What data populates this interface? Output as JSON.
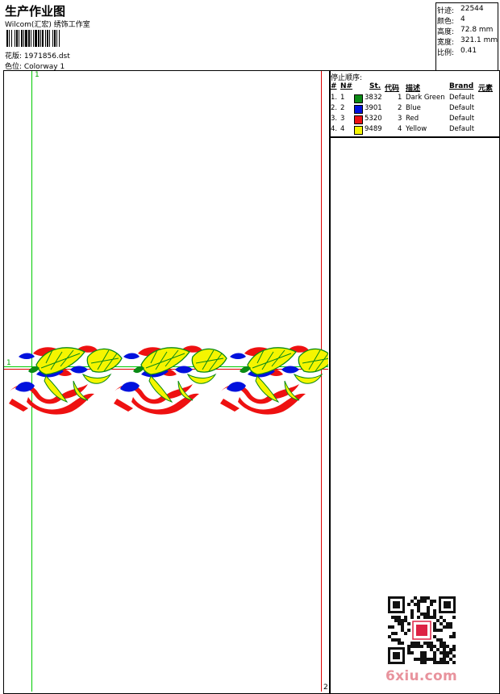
{
  "header": {
    "title": "生产作业图",
    "subtitle": "Wilcom(汇宏) 绣饰工作室",
    "design_file": "花版:  1971856.dst",
    "colorway": "色位:  Colorway 1"
  },
  "stats": [
    {
      "label": "针迹:",
      "value": "22544"
    },
    {
      "label": "颜色:",
      "value": "4"
    },
    {
      "label": "高度:",
      "value": "72.8 mm"
    },
    {
      "label": "宽度:",
      "value": "321.1 mm"
    },
    {
      "label": "比例:",
      "value": "0.41"
    }
  ],
  "stop_sequence": {
    "heading": "停止顺序:",
    "columns": [
      "#",
      "N#",
      "St.",
      "代码",
      "描述",
      "Brand",
      "元素"
    ],
    "rows": [
      {
        "idx": "1.",
        "n": "1",
        "color": "#0a8a14",
        "st": "3832",
        "code": "1",
        "desc": "Dark Green",
        "brand": "Default"
      },
      {
        "idx": "2.",
        "n": "2",
        "color": "#0011dd",
        "st": "3901",
        "code": "2",
        "desc": "Blue",
        "brand": "Default"
      },
      {
        "idx": "3.",
        "n": "3",
        "color": "#ee1111",
        "st": "5320",
        "code": "3",
        "desc": "Red",
        "brand": "Default"
      },
      {
        "idx": "4.",
        "n": "4",
        "color": "#f5f500",
        "st": "9489",
        "code": "4",
        "desc": "Yellow",
        "brand": "Default"
      }
    ]
  },
  "guides": {
    "v1_label": "1",
    "h1_label": "1",
    "v2_label": "2"
  },
  "colors": {
    "dark_green": "#0a8a14",
    "blue": "#0011dd",
    "red": "#ee1111",
    "yellow": "#f5f500",
    "guide_green": "#00cc00",
    "guide_red": "#dd0000"
  },
  "watermark": {
    "site": "6xiu.com"
  }
}
